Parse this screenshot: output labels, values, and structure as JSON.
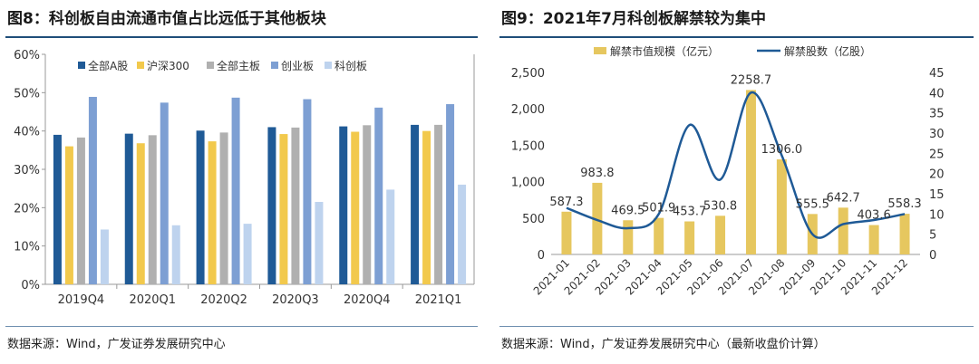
{
  "chart_data": [
    {
      "type": "bar",
      "figure_label": "图8",
      "title": "科创板自由流通市值占比远低于其他板块",
      "categories": [
        "2019Q4",
        "2020Q1",
        "2020Q2",
        "2020Q3",
        "2020Q4",
        "2021Q1"
      ],
      "series": [
        {
          "name": "全部A股",
          "color": "#1f5a96",
          "values": [
            39.0,
            39.3,
            40.1,
            41.0,
            41.2,
            41.6
          ]
        },
        {
          "name": "沪深300",
          "color": "#f2c94c",
          "values": [
            36.0,
            36.8,
            37.3,
            39.2,
            39.8,
            40.0
          ]
        },
        {
          "name": "全部主板",
          "color": "#b0b0b0",
          "values": [
            38.3,
            38.9,
            39.6,
            40.9,
            41.5,
            41.6
          ]
        },
        {
          "name": "创业板",
          "color": "#7d9fd3",
          "values": [
            48.9,
            47.4,
            48.7,
            48.3,
            46.1,
            47.0
          ]
        },
        {
          "name": "科创板",
          "color": "#bed3ee",
          "values": [
            14.3,
            15.4,
            15.8,
            21.5,
            24.7,
            26.0
          ]
        }
      ],
      "ylim": [
        0,
        60
      ],
      "yticks": [
        "0%",
        "10%",
        "20%",
        "30%",
        "40%",
        "50%",
        "60%"
      ],
      "legend": "top",
      "source": "数据来源：Wind，广发证券发展研究中心"
    },
    {
      "type": "bar+line",
      "figure_label": "图9",
      "title": "2021年7月科创板解禁较为集中",
      "categories": [
        "2021-01",
        "2021-02",
        "2021-03",
        "2021-04",
        "2021-05",
        "2021-06",
        "2021-07",
        "2021-08",
        "2021-09",
        "2021-10",
        "2021-11",
        "2021-12"
      ],
      "bar_series": {
        "name": "解禁市值规模（亿元）",
        "color": "#e6c75f",
        "values": [
          587.3,
          983.8,
          469.5,
          501.9,
          453.7,
          530.8,
          2258.7,
          1306.0,
          555.5,
          642.7,
          403.6,
          558.3
        ],
        "labels": [
          "587.3",
          "983.8",
          "469.5",
          "501.9",
          "453.7",
          "530.8",
          "2258.7",
          "1306.0",
          "555.5",
          "642.7",
          "403.6",
          "558.3"
        ]
      },
      "line_series": {
        "name": "解禁股数（亿股）",
        "color": "#1f5a96",
        "values": [
          11.5,
          8.5,
          6.5,
          10.0,
          32.0,
          18.5,
          40.0,
          24.5,
          5.0,
          7.5,
          8.5,
          10.0
        ]
      },
      "y_left": {
        "lim": [
          0,
          2500
        ],
        "ticks": [
          "0",
          "500",
          "1,000",
          "1,500",
          "2,000",
          "2,500"
        ]
      },
      "y_right": {
        "lim": [
          0,
          45
        ],
        "ticks": [
          "0",
          "5",
          "10",
          "15",
          "20",
          "25",
          "30",
          "35",
          "40",
          "45"
        ]
      },
      "legend": "top",
      "source": "数据来源：Wind，广发证券发展研究中心（最新收盘价计算）"
    }
  ]
}
